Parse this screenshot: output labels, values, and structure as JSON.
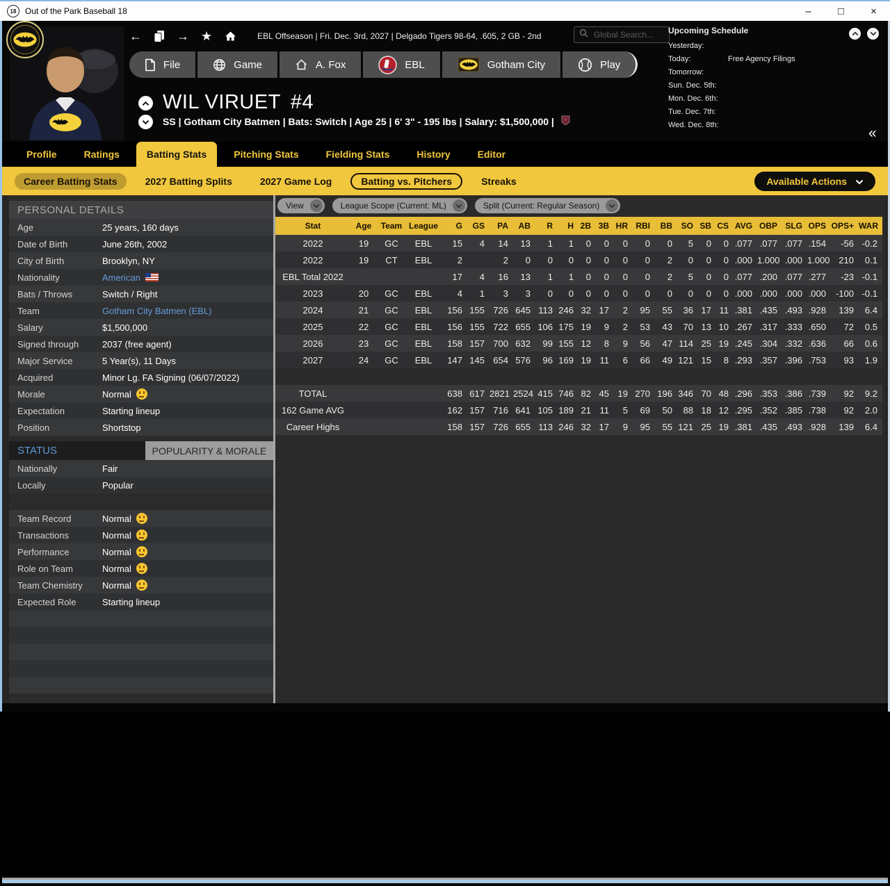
{
  "window": {
    "title": "Out of the Park Baseball 18",
    "icon_label": "18"
  },
  "topbar": {
    "status_text": "EBL Offseason  |  Fri. Dec. 3rd, 2027  |  Delgado Tigers  98-64, .605, 2 GB - 2nd"
  },
  "search": {
    "placeholder": "Global Search..."
  },
  "schedule": {
    "title": "Upcoming Schedule",
    "rows": [
      {
        "label": "Yesterday:",
        "value": ""
      },
      {
        "label": "Today:",
        "value": "Free Agency Filings"
      },
      {
        "label": "Tomorrow:",
        "value": ""
      },
      {
        "label": "Sun. Dec. 5th:",
        "value": ""
      },
      {
        "label": "Mon. Dec. 6th:",
        "value": ""
      },
      {
        "label": "Tue. Dec. 7th:",
        "value": ""
      },
      {
        "label": "Wed. Dec. 8th:",
        "value": ""
      }
    ]
  },
  "nav_buttons": [
    {
      "label": "File",
      "icon": "file-icon"
    },
    {
      "label": "Game",
      "icon": "globe-icon"
    },
    {
      "label": "A. Fox",
      "icon": "home-icon"
    },
    {
      "label": "EBL",
      "icon": "ebl-logo-icon"
    },
    {
      "label": "Gotham City",
      "icon": "batman-logo-icon"
    },
    {
      "label": "Play",
      "icon": "baseball-icon"
    }
  ],
  "player": {
    "name": "WIL VIRUET",
    "number": "#4",
    "info": "SS | Gotham City Batmen  |  Bats: Switch  |  Age 25  |  6' 3\" - 195 lbs  |  Salary: $1,500,000  |"
  },
  "tabs": [
    {
      "label": "Profile",
      "active": false
    },
    {
      "label": "Ratings",
      "active": false
    },
    {
      "label": "Batting Stats",
      "active": true
    },
    {
      "label": "Pitching Stats",
      "active": false
    },
    {
      "label": "Fielding Stats",
      "active": false
    },
    {
      "label": "History",
      "active": false
    },
    {
      "label": "Editor",
      "active": false
    }
  ],
  "subtabs": [
    {
      "label": "Career Batting Stats",
      "style": "solid"
    },
    {
      "label": "2027 Batting Splits",
      "style": "plain"
    },
    {
      "label": "2027 Game Log",
      "style": "plain"
    },
    {
      "label": "Batting vs. Pitchers",
      "style": "outline"
    },
    {
      "label": "Streaks",
      "style": "plain"
    }
  ],
  "available_actions_label": "Available Actions",
  "personal_details": {
    "title": "PERSONAL DETAILS",
    "rows": [
      {
        "label": "Age",
        "value": "25 years, 160 days"
      },
      {
        "label": "Date of Birth",
        "value": "June 26th, 2002"
      },
      {
        "label": "City of Birth",
        "value": "Brooklyn, NY"
      },
      {
        "label": "Nationality",
        "value": "American",
        "link": true,
        "flag": true
      },
      {
        "label": "Bats / Throws",
        "value": "Switch / Right"
      },
      {
        "label": "Team",
        "value": "Gotham City Batmen (EBL)",
        "link": true
      },
      {
        "label": "Salary",
        "value": "$1,500,000"
      },
      {
        "label": "Signed through",
        "value": "2037 (free agent)"
      },
      {
        "label": "Major Service",
        "value": "5 Year(s), 11 Days"
      },
      {
        "label": "Acquired",
        "value": "Minor Lg. FA Signing (06/07/2022)"
      },
      {
        "label": "Morale",
        "value": "Normal",
        "face": true
      },
      {
        "label": "Expectation",
        "value": "Starting lineup"
      },
      {
        "label": "Position",
        "value": "Shortstop"
      }
    ]
  },
  "status_panel": {
    "left_tab": "STATUS",
    "right_tab": "POPULARITY & MORALE",
    "rows": [
      {
        "label": "Nationally",
        "value": "Fair"
      },
      {
        "label": "Locally",
        "value": "Popular"
      },
      {
        "spacer": true
      },
      {
        "label": "Team Record",
        "value": "Normal",
        "face": true
      },
      {
        "label": "Transactions",
        "value": "Normal",
        "face": true
      },
      {
        "label": "Performance",
        "value": "Normal",
        "face": true
      },
      {
        "label": "Role on Team",
        "value": "Normal",
        "face": true
      },
      {
        "label": "Team Chemistry",
        "value": "Normal",
        "face": true
      },
      {
        "label": "Expected Role",
        "value": "Starting lineup"
      }
    ]
  },
  "stats": {
    "dropdowns": [
      "View",
      "League Scope  (Current: ML)",
      "Split  (Current: Regular Season)"
    ],
    "columns": [
      "Stat",
      "Age",
      "Team",
      "League",
      "G",
      "GS",
      "PA",
      "AB",
      "R",
      "H",
      "2B",
      "3B",
      "HR",
      "RBI",
      "BB",
      "SO",
      "SB",
      "CS",
      "AVG",
      "OBP",
      "SLG",
      "OPS",
      "OPS+",
      "WAR"
    ],
    "rows": [
      [
        "2022",
        "19",
        "GC",
        "EBL",
        "15",
        "4",
        "14",
        "13",
        "1",
        "1",
        "0",
        "0",
        "0",
        "0",
        "0",
        "5",
        "0",
        "0",
        ".077",
        ".077",
        ".077",
        ".154",
        "-56",
        "-0.2"
      ],
      [
        "2022",
        "19",
        "CT",
        "EBL",
        "2",
        "",
        "2",
        "0",
        "0",
        "0",
        "0",
        "0",
        "0",
        "0",
        "2",
        "0",
        "0",
        "0",
        ".000",
        "1.000",
        ".000",
        "1.000",
        "210",
        "0.1"
      ],
      [
        "EBL Total 2022",
        "",
        "",
        "",
        "17",
        "4",
        "16",
        "13",
        "1",
        "1",
        "0",
        "0",
        "0",
        "0",
        "2",
        "5",
        "0",
        "0",
        ".077",
        ".200",
        ".077",
        ".277",
        "-23",
        "-0.1"
      ],
      [
        "2023",
        "20",
        "GC",
        "EBL",
        "4",
        "1",
        "3",
        "3",
        "0",
        "0",
        "0",
        "0",
        "0",
        "0",
        "0",
        "0",
        "0",
        "0",
        ".000",
        ".000",
        ".000",
        ".000",
        "-100",
        "-0.1"
      ],
      [
        "2024",
        "21",
        "GC",
        "EBL",
        "156",
        "155",
        "726",
        "645",
        "113",
        "246",
        "32",
        "17",
        "2",
        "95",
        "55",
        "36",
        "17",
        "11",
        ".381",
        ".435",
        ".493",
        ".928",
        "139",
        "6.4"
      ],
      [
        "2025",
        "22",
        "GC",
        "EBL",
        "156",
        "155",
        "722",
        "655",
        "106",
        "175",
        "19",
        "9",
        "2",
        "53",
        "43",
        "70",
        "13",
        "10",
        ".267",
        ".317",
        ".333",
        ".650",
        "72",
        "0.5"
      ],
      [
        "2026",
        "23",
        "GC",
        "EBL",
        "158",
        "157",
        "700",
        "632",
        "99",
        "155",
        "12",
        "8",
        "9",
        "56",
        "47",
        "114",
        "25",
        "19",
        ".245",
        ".304",
        ".332",
        ".636",
        "66",
        "0.6"
      ],
      [
        "2027",
        "24",
        "GC",
        "EBL",
        "147",
        "145",
        "654",
        "576",
        "96",
        "169",
        "19",
        "11",
        "6",
        "66",
        "49",
        "121",
        "15",
        "8",
        ".293",
        ".357",
        ".396",
        ".753",
        "93",
        "1.9"
      ]
    ],
    "summary_rows": [
      [
        "TOTAL",
        "",
        "",
        "",
        "638",
        "617",
        "2821",
        "2524",
        "415",
        "746",
        "82",
        "45",
        "19",
        "270",
        "196",
        "346",
        "70",
        "48",
        ".296",
        ".353",
        ".386",
        ".739",
        "92",
        "9.2"
      ],
      [
        "162 Game AVG",
        "",
        "",
        "",
        "162",
        "157",
        "716",
        "641",
        "105",
        "189",
        "21",
        "11",
        "5",
        "69",
        "50",
        "88",
        "18",
        "12",
        ".295",
        ".352",
        ".385",
        ".738",
        "92",
        "2.0"
      ],
      [
        "Career Highs",
        "",
        "",
        "",
        "158",
        "157",
        "726",
        "655",
        "113",
        "246",
        "32",
        "17",
        "9",
        "95",
        "55",
        "121",
        "25",
        "19",
        ".381",
        ".435",
        ".493",
        ".928",
        "139",
        "6.4"
      ]
    ]
  },
  "colors": {
    "accent_yellow": "#f1c73e",
    "table_header_yellow": "#e8bd37",
    "link_blue": "#649bd8",
    "status_blue": "#5e9ad4"
  }
}
